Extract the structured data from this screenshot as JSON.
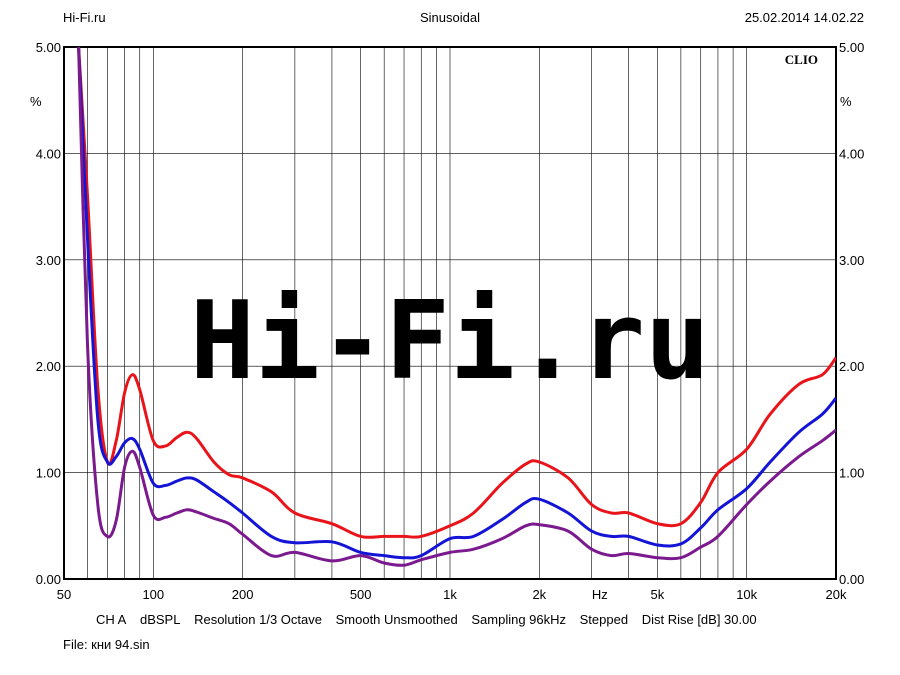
{
  "header": {
    "left": "Hi-Fi.ru",
    "center": "Sinusoidal",
    "right": "25.02.2014 14.02.22"
  },
  "brand": "CLIO",
  "watermark": "Hi-Fi.ru",
  "footer": {
    "channel": "CH A",
    "units": "dBSPL",
    "resolution": "Resolution 1/3 Octave",
    "smoothing": "Smooth Unsmoothed",
    "sampling": "Sampling 96kHz",
    "stepped": "Stepped",
    "dist_rise": "Dist Rise [dB] 30.00",
    "file": "File: кни 94.sin"
  },
  "chart_data": {
    "type": "line",
    "x_scale": "log",
    "xlim": [
      50,
      20000
    ],
    "ylim": [
      0,
      5
    ],
    "xlabel": "Hz",
    "ylabel": "%",
    "x_tick_labels": [
      {
        "value": 50,
        "label": "50"
      },
      {
        "value": 100,
        "label": "100"
      },
      {
        "value": 200,
        "label": "200"
      },
      {
        "value": 500,
        "label": "500"
      },
      {
        "value": 1000,
        "label": "1k"
      },
      {
        "value": 2000,
        "label": "2k"
      },
      {
        "value": 5000,
        "label": "5k"
      },
      {
        "value": 10000,
        "label": "10k"
      },
      {
        "value": 20000,
        "label": "20k"
      }
    ],
    "y_ticks": [
      0,
      1,
      2,
      3,
      4,
      5
    ],
    "y_tick_labels": [
      "0.00",
      "1.00",
      "2.00",
      "3.00",
      "4.00",
      "5.00"
    ],
    "grid": true,
    "series": [
      {
        "color": "#e8141a",
        "x": [
          56,
          60,
          65,
          70,
          75,
          80,
          85,
          90,
          100,
          110,
          120,
          130,
          140,
          160,
          180,
          200,
          250,
          300,
          400,
          500,
          600,
          700,
          800,
          1000,
          1200,
          1500,
          1800,
          2000,
          2500,
          3000,
          3500,
          4000,
          5000,
          6000,
          7000,
          8000,
          10000,
          12000,
          15000,
          18000,
          20000
        ],
        "y": [
          5.0,
          3.6,
          1.8,
          1.1,
          1.3,
          1.75,
          1.92,
          1.78,
          1.3,
          1.25,
          1.33,
          1.38,
          1.32,
          1.1,
          0.98,
          0.95,
          0.82,
          0.62,
          0.52,
          0.4,
          0.4,
          0.4,
          0.4,
          0.5,
          0.62,
          0.9,
          1.08,
          1.1,
          0.95,
          0.7,
          0.62,
          0.62,
          0.52,
          0.52,
          0.72,
          1.0,
          1.22,
          1.55,
          1.83,
          1.92,
          2.08
        ]
      },
      {
        "color": "#1414d6",
        "x": [
          56,
          60,
          65,
          70,
          75,
          80,
          85,
          90,
          100,
          110,
          120,
          130,
          140,
          160,
          180,
          200,
          250,
          300,
          400,
          500,
          600,
          700,
          800,
          1000,
          1200,
          1500,
          1800,
          2000,
          2500,
          3000,
          3500,
          4000,
          5000,
          6000,
          7000,
          8000,
          10000,
          12000,
          15000,
          18000,
          20000
        ],
        "y": [
          5.0,
          3.2,
          1.5,
          1.1,
          1.15,
          1.28,
          1.32,
          1.22,
          0.9,
          0.88,
          0.92,
          0.95,
          0.93,
          0.82,
          0.72,
          0.62,
          0.4,
          0.34,
          0.35,
          0.25,
          0.22,
          0.2,
          0.22,
          0.38,
          0.4,
          0.56,
          0.72,
          0.75,
          0.62,
          0.45,
          0.4,
          0.4,
          0.32,
          0.33,
          0.48,
          0.65,
          0.85,
          1.1,
          1.38,
          1.55,
          1.7
        ]
      },
      {
        "color": "#7a1a8e",
        "x": [
          56,
          60,
          65,
          70,
          75,
          80,
          85,
          90,
          100,
          110,
          120,
          130,
          140,
          160,
          180,
          200,
          250,
          300,
          400,
          500,
          600,
          700,
          800,
          1000,
          1200,
          1500,
          1800,
          2000,
          2500,
          3000,
          3500,
          4000,
          5000,
          6000,
          7000,
          8000,
          10000,
          12000,
          15000,
          18000,
          20000
        ],
        "y": [
          5.0,
          2.2,
          0.7,
          0.4,
          0.55,
          1.05,
          1.2,
          1.05,
          0.6,
          0.58,
          0.62,
          0.65,
          0.63,
          0.57,
          0.52,
          0.42,
          0.22,
          0.25,
          0.17,
          0.22,
          0.15,
          0.13,
          0.18,
          0.25,
          0.28,
          0.38,
          0.5,
          0.51,
          0.45,
          0.28,
          0.22,
          0.24,
          0.2,
          0.2,
          0.3,
          0.4,
          0.7,
          0.92,
          1.15,
          1.3,
          1.4
        ]
      }
    ]
  }
}
